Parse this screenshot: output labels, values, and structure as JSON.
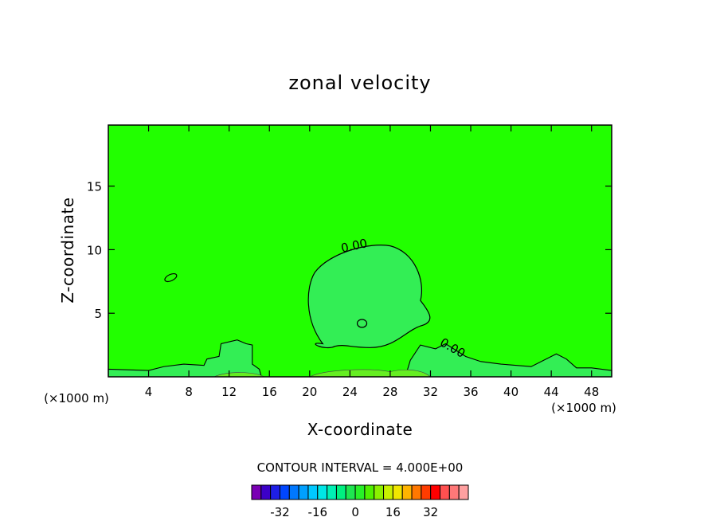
{
  "chart_data": {
    "type": "contour",
    "title": "zonal velocity",
    "xlabel": "X-coordinate",
    "ylabel": "Z-coordinate",
    "x_unit": "(×1000 m)",
    "y_unit": "(×1000 m)",
    "xlim": [
      0,
      50
    ],
    "ylim": [
      0,
      19.8
    ],
    "x_ticks": [
      4,
      8,
      12,
      16,
      20,
      24,
      28,
      32,
      36,
      40,
      44,
      48
    ],
    "y_ticks": [
      5,
      10,
      15
    ],
    "contour_interval_text": "CONTOUR INTERVAL = 4.000E+00",
    "contour_labels": [
      {
        "text": "0.00",
        "x": 24.5,
        "z": 10.0
      },
      {
        "text": "0.00",
        "x": 34.0,
        "z": 2.0
      }
    ],
    "colorbar": {
      "tick_labels": [
        "-32",
        "-16",
        "0",
        "16",
        "32"
      ],
      "tick_values": [
        -32,
        -16,
        0,
        16,
        32
      ],
      "colors": [
        "#7a00b4",
        "#3c00c8",
        "#1e1ee6",
        "#0046ff",
        "#0078ff",
        "#00a0ff",
        "#00c8ff",
        "#00e6e6",
        "#00f0b4",
        "#00f080",
        "#1ee650",
        "#28f028",
        "#50f000",
        "#8cf000",
        "#c8f000",
        "#f0e600",
        "#ffb400",
        "#ff7800",
        "#ff3c00",
        "#ff0000",
        "#ff5050",
        "#ff7878",
        "#ffa0a0"
      ]
    },
    "background_fill": "#22ff00"
  }
}
